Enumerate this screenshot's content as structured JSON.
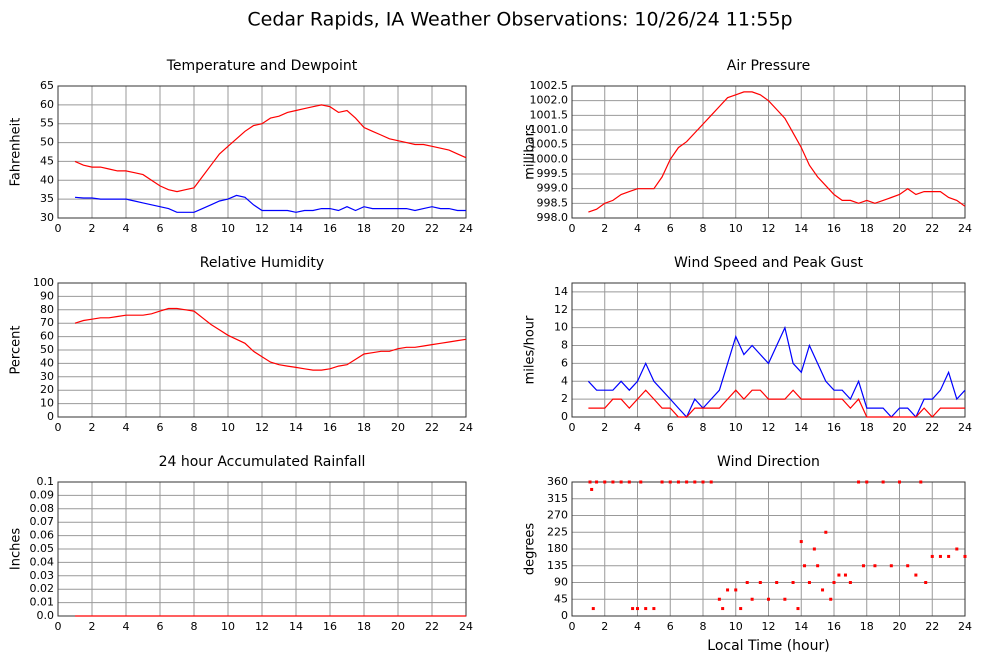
{
  "title": "Cedar Rapids, IA Weather Observations: 10/26/24 11:55p",
  "chart_data": [
    {
      "type": "line",
      "title": "Temperature and Dewpoint",
      "ylabel": "Fahrenheit",
      "x": [
        1,
        1.5,
        2,
        2.5,
        3,
        3.5,
        4,
        4.5,
        5,
        5.5,
        6,
        6.5,
        7,
        7.5,
        8,
        8.5,
        9,
        9.5,
        10,
        10.5,
        11,
        11.5,
        12,
        12.5,
        13,
        13.5,
        14,
        14.5,
        15,
        15.5,
        16,
        16.5,
        17,
        17.5,
        18,
        18.5,
        19,
        19.5,
        20,
        20.5,
        21,
        21.5,
        22,
        22.5,
        23,
        23.5,
        24
      ],
      "series": [
        {
          "color": "#ff0000",
          "values": [
            45,
            44,
            43.5,
            43.5,
            43,
            42.5,
            42.5,
            42,
            41.5,
            40,
            38.5,
            37.5,
            37,
            37.5,
            38,
            41,
            44,
            47,
            49,
            51,
            53,
            54.5,
            55,
            56.5,
            57,
            58,
            58.5,
            59,
            59.5,
            60,
            59.5,
            58,
            58.5,
            56.5,
            54,
            53,
            52,
            51,
            50.5,
            50,
            49.5,
            49.5,
            49,
            48.5,
            48,
            47,
            46
          ]
        },
        {
          "color": "#0000ff",
          "values": [
            35.5,
            35.3,
            35.3,
            35,
            35,
            35,
            35,
            34.5,
            34,
            33.5,
            33,
            32.5,
            31.5,
            31.5,
            31.5,
            32.5,
            33.5,
            34.5,
            35,
            36,
            35.5,
            33.5,
            32,
            32,
            32,
            32,
            31.5,
            32,
            32,
            32.5,
            32.5,
            32,
            33,
            32,
            33,
            32.5,
            32.5,
            32.5,
            32.5,
            32.5,
            32,
            32.5,
            33,
            32.5,
            32.5,
            32,
            32
          ]
        }
      ],
      "xlim": [
        0,
        24
      ],
      "xticks": [
        0,
        2,
        4,
        6,
        8,
        10,
        12,
        14,
        16,
        18,
        20,
        22,
        24
      ],
      "ylim": [
        30,
        65
      ],
      "yticks": [
        30,
        35,
        40,
        45,
        50,
        55,
        60,
        65
      ],
      "grid": true
    },
    {
      "type": "line",
      "title": "Air Pressure",
      "ylabel": "millibars",
      "x": [
        1,
        1.5,
        2,
        2.5,
        3,
        3.5,
        4,
        4.5,
        5,
        5.5,
        6,
        6.5,
        7,
        7.5,
        8,
        8.5,
        9,
        9.5,
        10,
        10.5,
        11,
        11.5,
        12,
        12.5,
        13,
        13.5,
        14,
        14.5,
        15,
        15.5,
        16,
        16.5,
        17,
        17.5,
        18,
        18.5,
        19,
        19.5,
        20,
        20.5,
        21,
        21.5,
        22,
        22.5,
        23,
        23.5,
        24
      ],
      "series": [
        {
          "color": "#ff0000",
          "values": [
            998.2,
            998.3,
            998.5,
            998.6,
            998.8,
            998.9,
            999.0,
            999.0,
            999.0,
            999.4,
            1000.0,
            1000.4,
            1000.6,
            1000.9,
            1001.2,
            1001.5,
            1001.8,
            1002.1,
            1002.2,
            1002.3,
            1002.3,
            1002.2,
            1002.0,
            1001.7,
            1001.4,
            1000.9,
            1000.4,
            999.8,
            999.4,
            999.1,
            998.8,
            998.6,
            998.6,
            998.5,
            998.6,
            998.5,
            998.6,
            998.7,
            998.8,
            999.0,
            998.8,
            998.9,
            998.9,
            998.9,
            998.7,
            998.6,
            998.4
          ]
        }
      ],
      "xlim": [
        0,
        24
      ],
      "xticks": [
        0,
        2,
        4,
        6,
        8,
        10,
        12,
        14,
        16,
        18,
        20,
        22,
        24
      ],
      "ylim": [
        998,
        1002.5
      ],
      "yticks": [
        {
          "value": 998,
          "label": "998.0"
        },
        998.5,
        {
          "value": 999,
          "label": "999.0"
        },
        999.5,
        {
          "value": 1000,
          "label": "1000.0"
        },
        1000.5,
        {
          "value": 1001,
          "label": "1001.0"
        },
        1001.5,
        {
          "value": 1002,
          "label": "1002.0"
        },
        1002.5
      ],
      "grid": true
    },
    {
      "type": "line",
      "title": "Relative Humidity",
      "ylabel": "Percent",
      "x": [
        1,
        1.5,
        2,
        2.5,
        3,
        3.5,
        4,
        4.5,
        5,
        5.5,
        6,
        6.5,
        7,
        7.5,
        8,
        8.5,
        9,
        9.5,
        10,
        10.5,
        11,
        11.5,
        12,
        12.5,
        13,
        13.5,
        14,
        14.5,
        15,
        15.5,
        16,
        16.5,
        17,
        17.5,
        18,
        18.5,
        19,
        19.5,
        20,
        20.5,
        21,
        21.5,
        22,
        22.5,
        23,
        23.5,
        24
      ],
      "series": [
        {
          "color": "#ff0000",
          "values": [
            70,
            72,
            73,
            74,
            74,
            75,
            76,
            76,
            76,
            77,
            79,
            81,
            81,
            80,
            79,
            74,
            69,
            65,
            61,
            58,
            55,
            49,
            45,
            41,
            39,
            38,
            37,
            36,
            35,
            35,
            36,
            38,
            39,
            43,
            47,
            48,
            49,
            49,
            51,
            52,
            52,
            53,
            54,
            55,
            56,
            57,
            58
          ]
        }
      ],
      "xlim": [
        0,
        24
      ],
      "xticks": [
        0,
        2,
        4,
        6,
        8,
        10,
        12,
        14,
        16,
        18,
        20,
        22,
        24
      ],
      "ylim": [
        0,
        100
      ],
      "yticks": [
        0,
        10,
        20,
        30,
        40,
        50,
        60,
        70,
        80,
        90,
        100
      ],
      "grid": true
    },
    {
      "type": "line",
      "title": "Wind Speed and Peak Gust",
      "ylabel": "miles/hour",
      "x": [
        1,
        1.5,
        2,
        2.5,
        3,
        3.5,
        4,
        4.5,
        5,
        5.5,
        6,
        6.5,
        7,
        7.5,
        8,
        8.5,
        9,
        9.5,
        10,
        10.5,
        11,
        11.5,
        12,
        12.5,
        13,
        13.5,
        14,
        14.5,
        15,
        15.5,
        16,
        16.5,
        17,
        17.5,
        18,
        18.5,
        19,
        19.5,
        20,
        20.5,
        21,
        21.5,
        22,
        22.5,
        23,
        23.5,
        24
      ],
      "series": [
        {
          "color": "#0000ff",
          "values": [
            4,
            3,
            3,
            3,
            4,
            3,
            4,
            6,
            4,
            3,
            2,
            1,
            0,
            2,
            1,
            2,
            3,
            6,
            9,
            7,
            8,
            7,
            6,
            8,
            10,
            6,
            5,
            8,
            6,
            4,
            3,
            3,
            2,
            4,
            1,
            1,
            1,
            0,
            1,
            1,
            0,
            2,
            2,
            3,
            5,
            2,
            3
          ]
        },
        {
          "color": "#ff0000",
          "values": [
            1,
            1,
            1,
            2,
            2,
            1,
            2,
            3,
            2,
            1,
            1,
            0,
            0,
            1,
            1,
            1,
            1,
            2,
            3,
            2,
            3,
            3,
            2,
            2,
            2,
            3,
            2,
            2,
            2,
            2,
            2,
            2,
            1,
            2,
            0,
            0,
            0,
            0,
            0,
            0,
            0,
            1,
            0,
            1,
            1,
            1,
            1
          ]
        }
      ],
      "xlim": [
        0,
        24
      ],
      "xticks": [
        0,
        2,
        4,
        6,
        8,
        10,
        12,
        14,
        16,
        18,
        20,
        22,
        24
      ],
      "ylim": [
        0,
        15
      ],
      "yticks": [
        0,
        2,
        4,
        6,
        8,
        10,
        12,
        14
      ],
      "grid": true
    },
    {
      "type": "line",
      "title": "24 hour Accumulated Rainfall",
      "ylabel": "Inches",
      "x": [
        1,
        24
      ],
      "series": [
        {
          "color": "#ff0000",
          "values": [
            0,
            0
          ]
        }
      ],
      "xlim": [
        0,
        24
      ],
      "xticks": [
        0,
        2,
        4,
        6,
        8,
        10,
        12,
        14,
        16,
        18,
        20,
        22,
        24
      ],
      "ylim": [
        0,
        0.1
      ],
      "yticks": [
        {
          "value": 0,
          "label": "0.0"
        },
        0.01,
        0.02,
        0.03,
        0.04,
        0.05,
        0.06,
        0.07,
        0.08,
        0.09,
        0.1
      ],
      "grid": true
    },
    {
      "type": "scatter",
      "title": "Wind Direction",
      "ylabel": "degrees",
      "xlabel": "Local Time (hour)",
      "x": [
        1.1,
        1.2,
        1.3,
        1.5,
        2,
        2.5,
        3,
        3.5,
        3.7,
        4,
        4.2,
        4.5,
        5,
        5.5,
        6,
        6.5,
        7,
        7.5,
        8,
        8.5,
        9,
        9.2,
        9.5,
        10,
        10.3,
        10.7,
        11,
        11.5,
        12,
        12.5,
        13,
        13.5,
        13.8,
        14,
        14.2,
        14.5,
        14.8,
        15,
        15.3,
        15.5,
        15.8,
        16,
        16.3,
        16.7,
        17,
        17.5,
        17.8,
        18,
        18.5,
        19,
        19.5,
        20,
        20.5,
        21,
        21.3,
        21.6,
        22,
        22.5,
        23,
        23.5,
        24
      ],
      "series": [
        {
          "color": "#ff0000",
          "values": [
            360,
            340,
            20,
            360,
            360,
            360,
            360,
            360,
            20,
            20,
            360,
            20,
            20,
            360,
            360,
            360,
            360,
            360,
            360,
            360,
            45,
            20,
            70,
            70,
            20,
            90,
            45,
            90,
            45,
            90,
            45,
            90,
            20,
            200,
            135,
            90,
            180,
            135,
            70,
            225,
            45,
            90,
            110,
            110,
            90,
            360,
            135,
            360,
            135,
            360,
            135,
            360,
            135,
            110,
            360,
            90,
            160,
            160,
            160,
            180,
            160
          ]
        }
      ],
      "xlim": [
        0,
        24
      ],
      "xticks": [
        0,
        2,
        4,
        6,
        8,
        10,
        12,
        14,
        16,
        18,
        20,
        22,
        24
      ],
      "ylim": [
        0,
        360
      ],
      "yticks": [
        0,
        45,
        90,
        135,
        180,
        225,
        270,
        315,
        360
      ],
      "grid": true
    }
  ]
}
